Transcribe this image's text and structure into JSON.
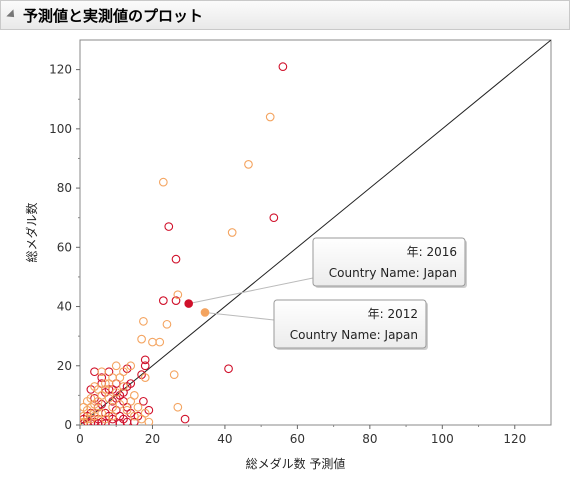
{
  "window": {
    "title": "予測値と実測値のプロット"
  },
  "colors": {
    "year2016": "#d0102a",
    "year2012": "#f4a460",
    "diagonal": "#222222",
    "leader": "#bbbbbb"
  },
  "chart_data": {
    "type": "scatter",
    "title": "予測値と実測値のプロット",
    "xlabel": "総メダル数 予測値",
    "ylabel": "総メダル数",
    "xlim": [
      0,
      130
    ],
    "ylim": [
      0,
      130
    ],
    "xticks": [
      0,
      20,
      40,
      60,
      80,
      100,
      120
    ],
    "yticks": [
      0,
      20,
      40,
      60,
      80,
      100,
      120
    ],
    "grid": false,
    "reference_line": "y = x",
    "series": [
      {
        "color": "#d0102a",
        "points": [
          [
            56,
            121
          ],
          [
            53.5,
            70
          ],
          [
            24.5,
            67
          ],
          [
            26.5,
            56
          ],
          [
            23,
            42
          ],
          [
            26.5,
            42
          ],
          [
            41,
            19
          ],
          [
            29,
            2
          ],
          [
            18,
            22
          ],
          [
            18,
            20
          ],
          [
            17,
            17
          ],
          [
            17.5,
            8
          ],
          [
            19,
            5
          ],
          [
            13,
            19
          ],
          [
            14,
            14
          ],
          [
            13,
            13
          ],
          [
            12,
            11
          ],
          [
            11,
            10
          ],
          [
            10,
            9
          ],
          [
            9,
            8
          ],
          [
            8,
            12
          ],
          [
            6,
            14
          ],
          [
            7,
            11
          ],
          [
            5,
            6
          ],
          [
            4,
            18
          ],
          [
            3,
            12
          ],
          [
            6,
            7
          ],
          [
            10,
            5
          ],
          [
            11,
            3
          ],
          [
            12,
            2
          ],
          [
            8,
            3
          ],
          [
            5,
            2
          ],
          [
            3,
            4
          ],
          [
            2,
            1
          ],
          [
            1,
            2
          ],
          [
            4,
            1
          ],
          [
            6,
            1
          ],
          [
            7,
            4
          ],
          [
            9,
            2
          ],
          [
            13,
            6
          ],
          [
            14,
            4
          ],
          [
            16,
            3
          ],
          [
            2,
            3
          ],
          [
            1,
            0.5
          ],
          [
            3,
            0.5
          ],
          [
            5,
            0.5
          ],
          [
            7,
            0.5
          ],
          [
            9,
            0.5
          ],
          [
            11,
            0.5
          ],
          [
            13,
            1
          ],
          [
            15,
            1
          ],
          [
            10,
            14
          ],
          [
            8,
            18
          ],
          [
            6,
            16
          ],
          [
            4,
            9
          ],
          [
            12,
            8
          ],
          [
            9,
            12
          ]
        ]
      },
      {
        "color": "#f4a460",
        "points": [
          [
            52.5,
            104
          ],
          [
            46.5,
            88
          ],
          [
            23,
            82
          ],
          [
            42,
            65
          ],
          [
            27,
            44
          ],
          [
            17.5,
            35
          ],
          [
            24,
            34
          ],
          [
            17,
            29
          ],
          [
            20,
            28
          ],
          [
            22,
            28
          ],
          [
            26,
            17
          ],
          [
            27,
            6
          ],
          [
            18,
            16
          ],
          [
            14,
            20
          ],
          [
            12,
            18
          ],
          [
            10,
            20
          ],
          [
            9,
            16
          ],
          [
            8,
            14
          ],
          [
            7,
            12
          ],
          [
            6,
            10
          ],
          [
            5,
            8
          ],
          [
            4,
            7
          ],
          [
            3,
            6
          ],
          [
            2,
            5
          ],
          [
            1,
            3
          ],
          [
            3,
            9
          ],
          [
            5,
            12
          ],
          [
            7,
            14
          ],
          [
            9,
            6
          ],
          [
            11,
            7
          ],
          [
            13,
            5
          ],
          [
            15,
            3
          ],
          [
            17,
            2
          ],
          [
            19,
            1
          ],
          [
            12,
            13
          ],
          [
            10,
            11
          ],
          [
            8,
            9
          ],
          [
            6,
            4
          ],
          [
            4,
            3
          ],
          [
            2,
            2
          ],
          [
            1,
            1
          ],
          [
            11,
            16
          ],
          [
            15,
            10
          ],
          [
            14,
            8
          ],
          [
            16,
            6
          ],
          [
            18,
            4
          ],
          [
            6,
            18
          ],
          [
            4,
            13
          ],
          [
            3,
            2
          ],
          [
            5,
            4
          ],
          [
            7,
            2
          ],
          [
            9,
            3
          ],
          [
            1,
            6
          ],
          [
            2,
            8
          ]
        ]
      }
    ],
    "highlighted": [
      {
        "x": 30,
        "y": 41,
        "color": "#d0102a",
        "year_label": "年:",
        "year": "2016",
        "country_label": "Country Name:",
        "country": "Japan"
      },
      {
        "x": 34.5,
        "y": 38,
        "color": "#f4a460",
        "year_label": "年:",
        "year": "2012",
        "country_label": "Country Name:",
        "country": "Japan"
      }
    ]
  }
}
